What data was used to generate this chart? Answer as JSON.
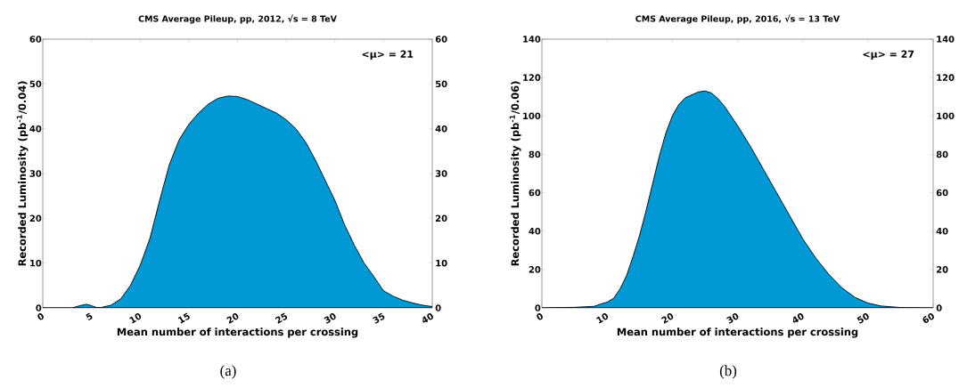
{
  "chart_data": [
    {
      "type": "area",
      "title": "CMS Average Pileup, pp, 2012, √s = 8 TeV",
      "xlabel": "Mean number of interactions per crossing",
      "ylabel": "Recorded Luminosity (pb$^{-1}$/0.04)",
      "x": [
        0,
        3,
        4,
        4.5,
        5,
        5.5,
        6,
        7,
        8,
        9,
        10,
        11,
        12,
        13,
        14,
        15,
        16,
        17,
        18,
        19,
        20,
        21,
        22,
        23,
        24,
        25,
        26,
        27,
        28,
        29,
        30,
        31,
        32,
        33,
        34,
        35,
        36,
        37,
        38,
        39,
        40
      ],
      "values": [
        0,
        0,
        0.6,
        0.8,
        0.5,
        0.1,
        0.1,
        0.6,
        2,
        5,
        9.5,
        15.5,
        24,
        32,
        37.5,
        41,
        43.5,
        45.5,
        46.8,
        47.3,
        47.2,
        46.5,
        45.5,
        44.5,
        43.5,
        42,
        40,
        37,
        33,
        28.5,
        24,
        18.5,
        14,
        10,
        7,
        3.8,
        2.6,
        1.7,
        1.1,
        0.6,
        0.3
      ],
      "color": "#0099d6",
      "xlim": [
        0,
        40
      ],
      "xticks": [
        0,
        5,
        10,
        15,
        20,
        25,
        30,
        35,
        40
      ],
      "ylim": [
        0,
        60
      ],
      "yticks": [
        0,
        10,
        20,
        30,
        40,
        50,
        60
      ],
      "y2lim": [
        0,
        60
      ],
      "y2ticks": [
        0,
        10,
        20,
        30,
        40,
        50,
        60
      ],
      "annotations": [
        "<μ> = 21",
        "(a)"
      ]
    },
    {
      "type": "area",
      "title": "CMS Average Pileup, pp, 2016, √s = 13 TeV",
      "xlabel": "Mean number of interactions per crossing",
      "ylabel": "Recorded Luminosity (pb$^{-1}$/0.06)",
      "x": [
        0,
        5,
        8,
        9,
        10,
        11,
        12,
        13,
        14,
        15,
        16,
        17,
        18,
        19,
        20,
        21,
        22,
        23,
        24,
        25,
        26,
        27,
        28,
        29,
        30,
        32,
        34,
        36,
        38,
        40,
        42,
        44,
        46,
        48,
        50,
        52,
        55,
        60
      ],
      "values": [
        0,
        0.3,
        0.8,
        2,
        3,
        5,
        10,
        17,
        27,
        38,
        51,
        65,
        79,
        91,
        100,
        106,
        109.5,
        111,
        112.5,
        113,
        112,
        109,
        105,
        100,
        95,
        84,
        72,
        60,
        48,
        36,
        26,
        17.5,
        10.5,
        5.5,
        2.5,
        1,
        0.2,
        0
      ],
      "color": "#0099d6",
      "xlim": [
        0,
        60
      ],
      "xticks": [
        0,
        10,
        20,
        30,
        40,
        50,
        60
      ],
      "ylim": [
        0,
        140
      ],
      "yticks": [
        0,
        20,
        40,
        60,
        80,
        100,
        120,
        140
      ],
      "y2lim": [
        0,
        140
      ],
      "y2ticks": [
        0,
        20,
        40,
        60,
        80,
        100,
        120,
        140
      ],
      "annotations": [
        "<μ> = 27",
        "(b)"
      ]
    }
  ]
}
